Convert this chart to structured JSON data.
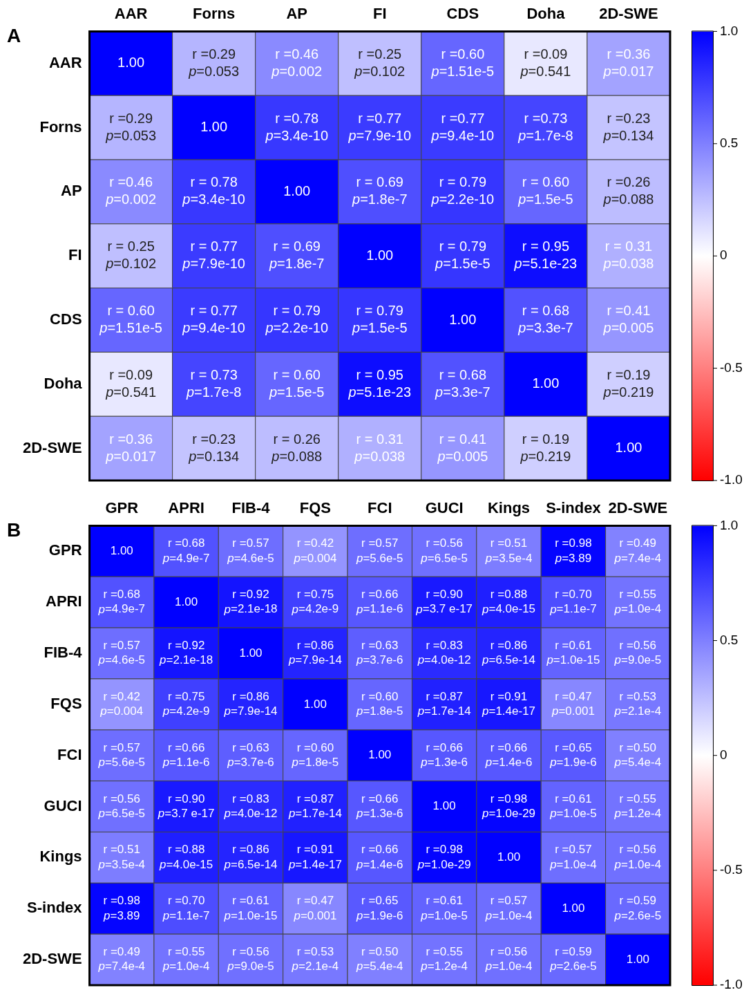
{
  "chart_data": [
    {
      "type": "heatmap",
      "title": "A",
      "categories": [
        "AAR",
        "Forns",
        "AP",
        "FI",
        "CDS",
        "Doha",
        "2D-SWE"
      ],
      "y_categories": [
        "AAR",
        "Forns",
        "AP",
        "FI",
        "CDS",
        "Doha",
        "2D-SWE"
      ],
      "cells": [
        [
          1,
          0.29,
          0.46,
          0.25,
          0.6,
          0.09,
          0.36
        ],
        [
          0.29,
          1,
          0.78,
          0.77,
          0.77,
          0.73,
          0.23
        ],
        [
          0.46,
          0.78,
          1,
          0.69,
          0.79,
          0.6,
          0.26
        ],
        [
          0.25,
          0.77,
          0.69,
          1,
          0.79,
          0.95,
          0.31
        ],
        [
          0.6,
          0.77,
          0.79,
          0.79,
          1,
          0.68,
          0.41
        ],
        [
          0.09,
          0.73,
          0.6,
          0.95,
          0.68,
          1,
          0.19
        ],
        [
          0.36,
          0.23,
          0.26,
          0.31,
          0.41,
          0.19,
          1
        ]
      ],
      "cell_labels": [
        [
          "1.00",
          "r =0.29\np=0.053",
          "r =0.46\np=0.002",
          "r =0.25\np=0.102",
          "r =0.60\np=1.51e-5",
          "r =0.09\np=0.541",
          "r =0.36\np=0.017"
        ],
        [
          "r =0.29\np=0.053",
          "1.00",
          "r =0.78\np=3.4e-10",
          "r =0.77\np=7.9e-10",
          "r =0.77\np=9.4e-10",
          "r =0.73\np=1.7e-8",
          "r =0.23\np=0.134"
        ],
        [
          "r =0.46\np=0.002",
          "r = 0.78\np=3.4e-10",
          "1.00",
          "r = 0.69\np=1.8e-7",
          "r = 0.79\np=2.2e-10",
          "r = 0.60\np=1.5e-5",
          "r =0.26\np=0.088"
        ],
        [
          "r = 0.25\np=0.102",
          "r = 0.77\np=7.9e-10",
          "r = 0.69\np=1.8e-7",
          "1.00",
          "r = 0.79\np=1.5e-5",
          "r = 0.95\np=5.1e-23",
          "r = 0.31\np=0.038"
        ],
        [
          "r = 0.60\np=1.51e-5",
          "r = 0.77\np=9.4e-10",
          "r = 0.79\np=2.2e-10",
          "r = 0.79\np=1.5e-5",
          "1.00",
          "r = 0.68\np=3.3e-7",
          "r =0.41\np=0.005"
        ],
        [
          "r =0.09\np=0.541",
          "r = 0.73\np=1.7e-8",
          "r = 0.60\np=1.5e-5",
          "r = 0.95\np=5.1e-23",
          "r = 0.68\np=3.3e-7",
          "1.00",
          "r =0.19\np=0.219"
        ],
        [
          "r =0.36\np=0.017",
          "r =0.23\np=0.134",
          "r = 0.26\np=0.088",
          "r = 0.31\np=0.038",
          "r = 0.41\np=0.005",
          "r = 0.19\np=0.219",
          "1.00"
        ]
      ],
      "clim": [
        -1,
        1
      ],
      "cticks": [
        {
          "value": -1,
          "label": "-1.0"
        },
        {
          "value": -0.5,
          "label": "-0.5"
        },
        0,
        {
          "value": 0.5,
          "label": "0.5"
        },
        {
          "value": 1,
          "label": "1.0"
        }
      ]
    },
    {
      "type": "heatmap",
      "title": "B",
      "categories": [
        "GPR",
        "APRI",
        "FIB-4",
        "FQS",
        "FCI",
        "GUCI",
        "Kings",
        "S-index",
        "2D-SWE"
      ],
      "y_categories": [
        "GPR",
        "APRI",
        "FIB-4",
        "FQS",
        "FCI",
        "GUCI",
        "Kings",
        "S-index",
        "2D-SWE"
      ],
      "cells": [
        [
          1,
          0.68,
          0.57,
          0.42,
          0.57,
          0.56,
          0.51,
          0.98,
          0.49
        ],
        [
          0.68,
          1,
          0.92,
          0.75,
          0.66,
          0.9,
          0.88,
          0.7,
          0.55
        ],
        [
          0.57,
          0.92,
          1,
          0.86,
          0.63,
          0.83,
          0.86,
          0.61,
          0.56
        ],
        [
          0.42,
          0.75,
          0.86,
          1,
          0.6,
          0.87,
          0.91,
          0.47,
          0.53
        ],
        [
          0.57,
          0.66,
          0.63,
          0.6,
          1,
          0.66,
          0.66,
          0.65,
          0.5
        ],
        [
          0.56,
          0.9,
          0.83,
          0.87,
          0.66,
          1,
          0.98,
          0.61,
          0.55
        ],
        [
          0.51,
          0.88,
          0.86,
          0.91,
          0.66,
          0.98,
          1,
          0.57,
          0.56
        ],
        [
          0.98,
          0.7,
          0.61,
          0.47,
          0.65,
          0.61,
          0.57,
          1,
          0.59
        ],
        [
          0.49,
          0.55,
          0.56,
          0.53,
          0.5,
          0.55,
          0.56,
          0.59,
          1
        ]
      ],
      "cell_labels": [
        [
          "1.00",
          "r =0.68\np=4.9e-7",
          "r =0.57\np=4.6e-5",
          "r =0.42\np=0.004",
          "r =0.57\np=5.6e-5",
          "r =0.56\np=6.5e-5",
          "r =0.51\np=3.5e-4",
          "r =0.98\np=3.89",
          "r =0.49\np=7.4e-4"
        ],
        [
          "r =0.68\np=4.9e-7",
          "1.00",
          "r =0.92\np=2.1e-18",
          "r =0.75\np=4.2e-9",
          "r =0.66\np=1.1e-6",
          "r =0.90\np=3.7 e-17",
          "r =0.88\np=4.0e-15",
          "r =0.70\np=1.1e-7",
          "r =0.55\np=1.0e-4"
        ],
        [
          "r =0.57\np=4.6e-5",
          "r =0.92\np=2.1e-18",
          "1.00",
          "r =0.86\np=7.9e-14",
          "r =0.63\np=3.7e-6",
          "r =0.83\np=4.0e-12",
          "r =0.86\np=6.5e-14",
          "r =0.61\np=1.0e-15",
          "r =0.56\np=9.0e-5"
        ],
        [
          "r =0.42\np=0.004",
          "r =0.75\np=4.2e-9",
          "r =0.86\np=7.9e-14",
          "1.00",
          "r =0.60\np=1.8e-5",
          "r =0.87\np=1.7e-14",
          "r =0.91\np=1.4e-17",
          "r =0.47\np=0.001",
          "r =0.53\np=2.1e-4"
        ],
        [
          "r =0.57\np=5.6e-5",
          "r =0.66\np=1.1e-6",
          "r =0.63\np=3.7e-6",
          "r =0.60\np=1.8e-5",
          "1.00",
          "r =0.66\np=1.3e-6",
          "r =0.66\np=1.4e-6",
          "r =0.65\np=1.9e-6",
          "r =0.50\np=5.4e-4"
        ],
        [
          "r =0.56\np=6.5e-5",
          "r =0.90\np=3.7 e-17",
          "r =0.83\np=4.0e-12",
          "r =0.87\np=1.7e-14",
          "r =0.66\np=1.3e-6",
          "1.00",
          "r =0.98\np=1.0e-29",
          "r =0.61\np=1.0e-5",
          "r =0.55\np=1.2e-4"
        ],
        [
          "r =0.51\np=3.5e-4",
          "r =0.88\np=4.0e-15",
          "r =0.86\np=6.5e-14",
          "r =0.91\np=1.4e-17",
          "r =0.66\np=1.4e-6",
          "r =0.98\np=1.0e-29",
          "1.00",
          "r =0.57\np=1.0e-4",
          "r =0.56\np=1.0e-4"
        ],
        [
          "r =0.98\np=3.89",
          "r =0.70\np=1.1e-7",
          "r =0.61\np=1.0e-15",
          "r =0.47\np=0.001",
          "r =0.65\np=1.9e-6",
          "r =0.61\np=1.0e-5",
          "r =0.57\np=1.0e-4",
          "1.00",
          "r =0.59\np=2.6e-5"
        ],
        [
          "r =0.49\np=7.4e-4",
          "r =0.55\np=1.0e-4",
          "r =0.56\np=9.0e-5",
          "r =0.53\np=2.1e-4",
          "r =0.50\np=5.4e-4",
          "r =0.55\np=1.2e-4",
          "r =0.56\np=1.0e-4",
          "r =0.59\np=2.6e-5",
          "1.00"
        ]
      ],
      "clim": [
        -1,
        1
      ],
      "cticks": [
        {
          "value": -1,
          "label": "-1.0"
        },
        {
          "value": -0.5,
          "label": "-0.5"
        },
        0,
        {
          "value": 0.5,
          "label": "0.5"
        },
        {
          "value": 1,
          "label": "1.0"
        }
      ]
    }
  ]
}
